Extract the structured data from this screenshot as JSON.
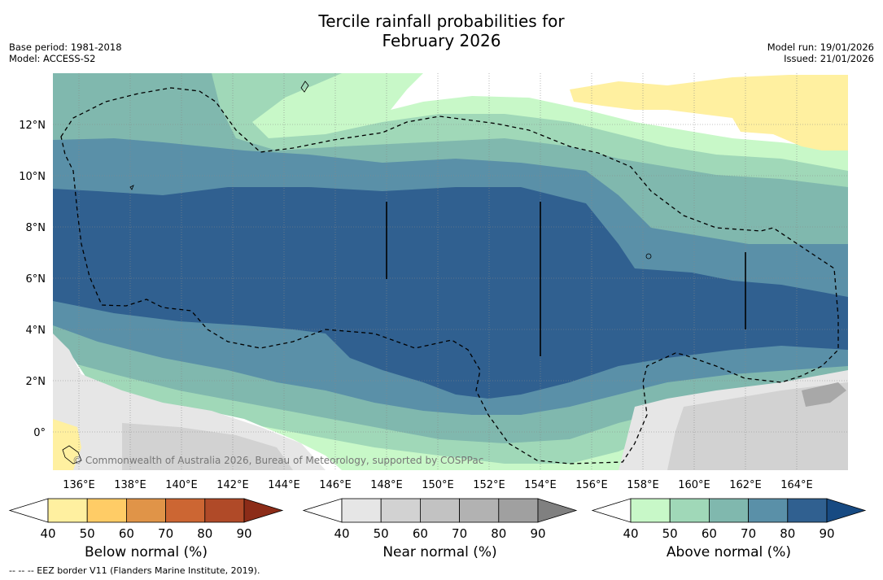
{
  "title_line1": "Tercile rainfall probabilities for",
  "title_line2": "February 2026",
  "meta_left": {
    "base_period": "Base period: 1981-2018",
    "model": "Model: ACCESS-S2"
  },
  "meta_right": {
    "model_run": "Model run: 19/01/2026",
    "issued": "Issued: 21/01/2026"
  },
  "map": {
    "lon_labels": [
      "136°E",
      "138°E",
      "140°E",
      "142°E",
      "144°E",
      "146°E",
      "148°E",
      "150°E",
      "152°E",
      "154°E",
      "156°E",
      "158°E",
      "160°E",
      "162°E",
      "164°E"
    ],
    "lat_labels": [
      "12°N",
      "10°N",
      "8°N",
      "6°N",
      "4°N",
      "2°N",
      "0°"
    ],
    "copyright": "© Commonwealth of Australia 2026, Bureau of Meteorology, supported by COSPPac"
  },
  "colorbars": [
    {
      "title": "Below normal (%)",
      "ticks": [
        "40",
        "50",
        "60",
        "70",
        "80",
        "90"
      ],
      "colors": [
        "#ffffff",
        "#fff0a0",
        "#ffcc66",
        "#e09448",
        "#cc6633",
        "#b04a28",
        "#8c2c18"
      ]
    },
    {
      "title": "Near normal (%)",
      "ticks": [
        "40",
        "50",
        "60",
        "70",
        "80",
        "90"
      ],
      "colors": [
        "#ffffff",
        "#e6e6e6",
        "#d2d2d2",
        "#c2c2c2",
        "#b2b2b2",
        "#a0a0a0",
        "#808080"
      ]
    },
    {
      "title": "Above normal (%)",
      "ticks": [
        "40",
        "50",
        "60",
        "70",
        "80",
        "90"
      ],
      "colors": [
        "#ffffff",
        "#c8f8c8",
        "#a0d8b8",
        "#80b8ae",
        "#5a90a8",
        "#306090",
        "#174a82"
      ]
    }
  ],
  "footnote": "--  --  -- EEZ border V11 (Flanders Marine Institute, 2019)."
}
